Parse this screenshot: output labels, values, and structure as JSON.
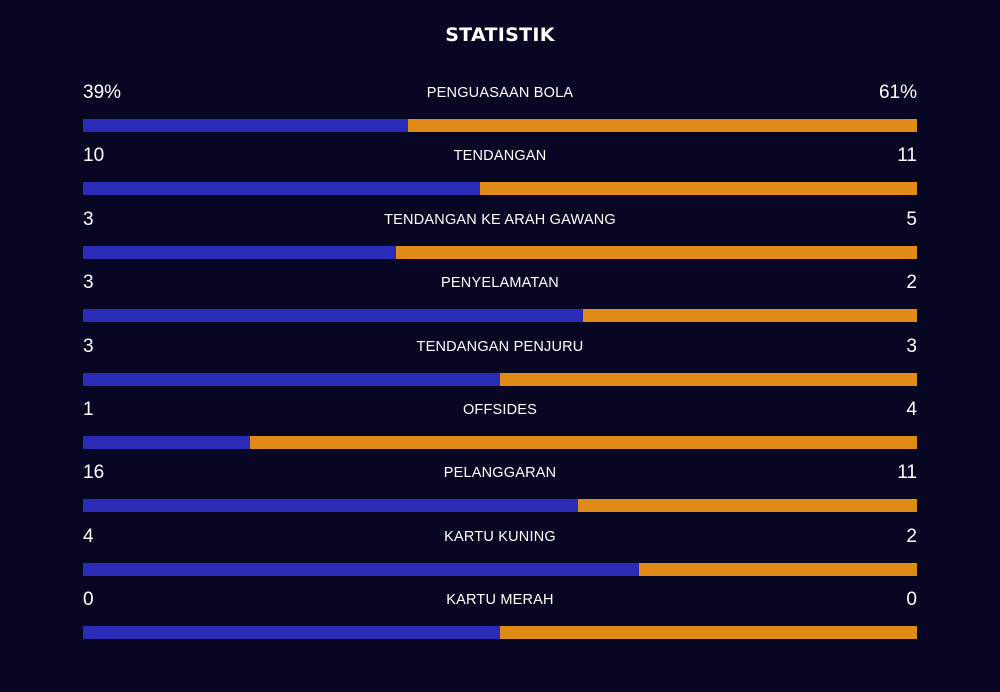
{
  "title": "STATISTIK",
  "colors": {
    "background": "#070724",
    "home": "#2a2cb8",
    "away": "#e08a17"
  },
  "stats": [
    {
      "label": "PENGUASAAN BOLA",
      "home": "39%",
      "away": "61%",
      "home_share": 0.39
    },
    {
      "label": "TENDANGAN",
      "home": "10",
      "away": "11",
      "home_share": 0.476
    },
    {
      "label": "TENDANGAN KE ARAH GAWANG",
      "home": "3",
      "away": "5",
      "home_share": 0.375
    },
    {
      "label": "PENYELAMATAN",
      "home": "3",
      "away": "2",
      "home_share": 0.6
    },
    {
      "label": "TENDANGAN PENJURU",
      "home": "3",
      "away": "3",
      "home_share": 0.5
    },
    {
      "label": "OFFSIDES",
      "home": "1",
      "away": "4",
      "home_share": 0.2
    },
    {
      "label": "PELANGGARAN",
      "home": "16",
      "away": "11",
      "home_share": 0.593
    },
    {
      "label": "KARTU KUNING",
      "home": "4",
      "away": "2",
      "home_share": 0.667
    },
    {
      "label": "KARTU MERAH",
      "home": "0",
      "away": "0",
      "home_share": 0.5
    }
  ]
}
